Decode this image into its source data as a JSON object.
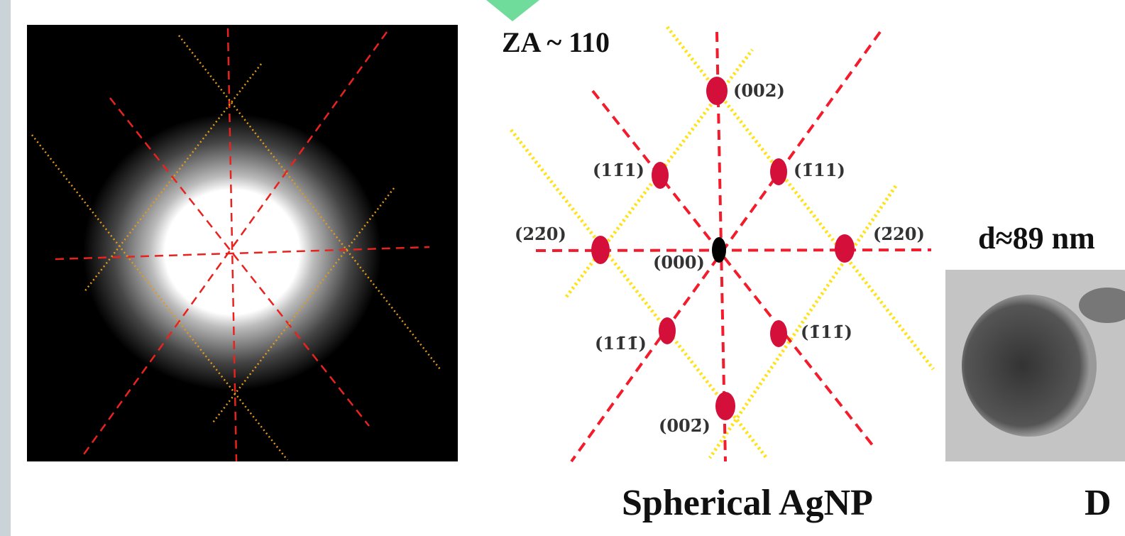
{
  "diagram": {
    "zone_axis": "ZA ~ 110",
    "spot_labels": [
      "(002)",
      "(11̄1)",
      "(1̄11)",
      "(22̄0)",
      "(2̄20)",
      "(000)",
      "(11̄1̄)",
      "(1̄11̄)",
      "(002̄)"
    ]
  },
  "size_label": "d≈89 nm",
  "captions": [
    "Spherical AgNP",
    "D"
  ]
}
